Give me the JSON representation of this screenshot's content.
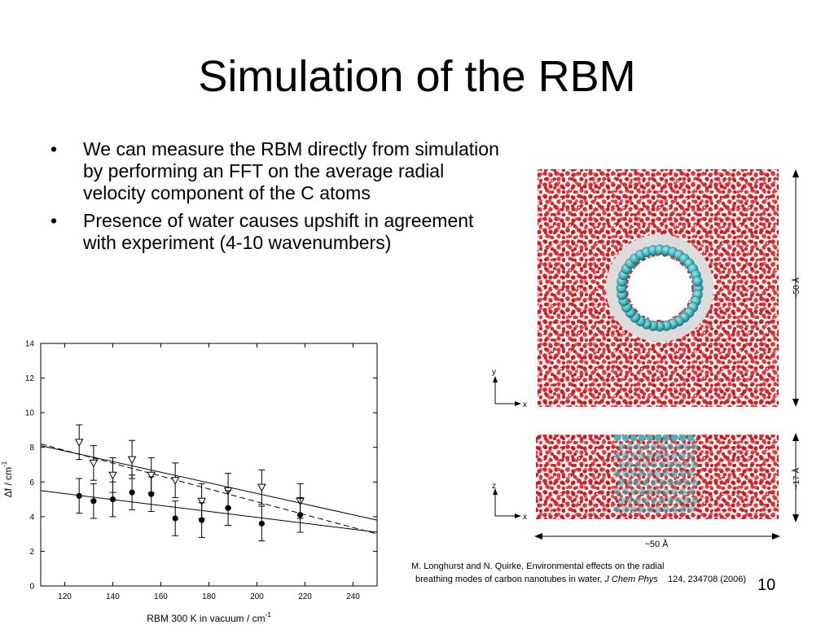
{
  "slide": {
    "title": "Simulation of the RBM",
    "bullets": [
      "We can measure the RBM directly from simulation by performing an FFT on the average radial velocity component of the C atoms",
      "Presence of water causes upshift in agreement with experiment (4-10 wavenumbers)"
    ],
    "bullet_symbol": "•",
    "slide_number": "10"
  },
  "citation": {
    "line1": "M. Longhurst and N. Quirke, Environmental effects on the radial",
    "line2_pre": "breathing modes of carbon nanotubes in water, ",
    "journal": "J Chem Phys",
    "line2_post": "124, 234708 (2006)"
  },
  "figure": {
    "top_view": {
      "axis_y": "y",
      "axis_x": "x",
      "dimension": "~50 Å"
    },
    "side_view": {
      "axis_y": "z",
      "axis_x": "x",
      "dimension_vertical": "~17 Å",
      "dimension_horizontal": "~50 Å"
    },
    "colors": {
      "oxygen": "#d8262c",
      "hydrogen": "#e6e6e6",
      "carbon": "#45b5bd"
    }
  },
  "chart_data": {
    "type": "scatter",
    "xlabel_main": "RBM 300 K in vacuum  /  cm",
    "xlabel_sup": "-1",
    "ylabel_main": "Δf / cm",
    "ylabel_sup": "-1",
    "xlim": [
      110,
      250
    ],
    "ylim": [
      0,
      14
    ],
    "xticks": [
      120,
      140,
      160,
      180,
      200,
      220,
      240
    ],
    "yticks": [
      0,
      2,
      4,
      6,
      8,
      10,
      12,
      14
    ],
    "series": [
      {
        "marker": "open-triangle-down",
        "points": [
          {
            "x": 126,
            "y": 8.3,
            "err": 1.0
          },
          {
            "x": 132,
            "y": 7.1,
            "err": 1.0
          },
          {
            "x": 140,
            "y": 6.4,
            "err": 1.0
          },
          {
            "x": 148,
            "y": 7.3,
            "err": 1.1
          },
          {
            "x": 156,
            "y": 6.4,
            "err": 1.0
          },
          {
            "x": 166,
            "y": 6.1,
            "err": 1.0
          },
          {
            "x": 177,
            "y": 4.9,
            "err": 1.0
          },
          {
            "x": 188,
            "y": 5.5,
            "err": 1.0
          },
          {
            "x": 202,
            "y": 5.7,
            "err": 1.0
          },
          {
            "x": 218,
            "y": 4.9,
            "err": 1.0
          }
        ]
      },
      {
        "marker": "filled-circle",
        "points": [
          {
            "x": 126,
            "y": 5.2,
            "err": 1.0
          },
          {
            "x": 132,
            "y": 4.9,
            "err": 1.0
          },
          {
            "x": 140,
            "y": 5.0,
            "err": 1.0
          },
          {
            "x": 148,
            "y": 5.4,
            "err": 1.0
          },
          {
            "x": 156,
            "y": 5.3,
            "err": 1.0
          },
          {
            "x": 166,
            "y": 3.9,
            "err": 1.0
          },
          {
            "x": 177,
            "y": 3.8,
            "err": 1.0
          },
          {
            "x": 188,
            "y": 4.5,
            "err": 1.0
          },
          {
            "x": 202,
            "y": 3.6,
            "err": 1.0
          },
          {
            "x": 218,
            "y": 4.1,
            "err": 1.0
          }
        ]
      }
    ],
    "fit_lines": [
      {
        "style": "solid",
        "x": [
          110,
          250
        ],
        "y": [
          8.1,
          3.8
        ]
      },
      {
        "style": "dashed",
        "x": [
          110,
          250
        ],
        "y": [
          8.2,
          3.0
        ]
      },
      {
        "style": "solid",
        "x": [
          110,
          250
        ],
        "y": [
          5.5,
          3.1
        ]
      }
    ]
  }
}
